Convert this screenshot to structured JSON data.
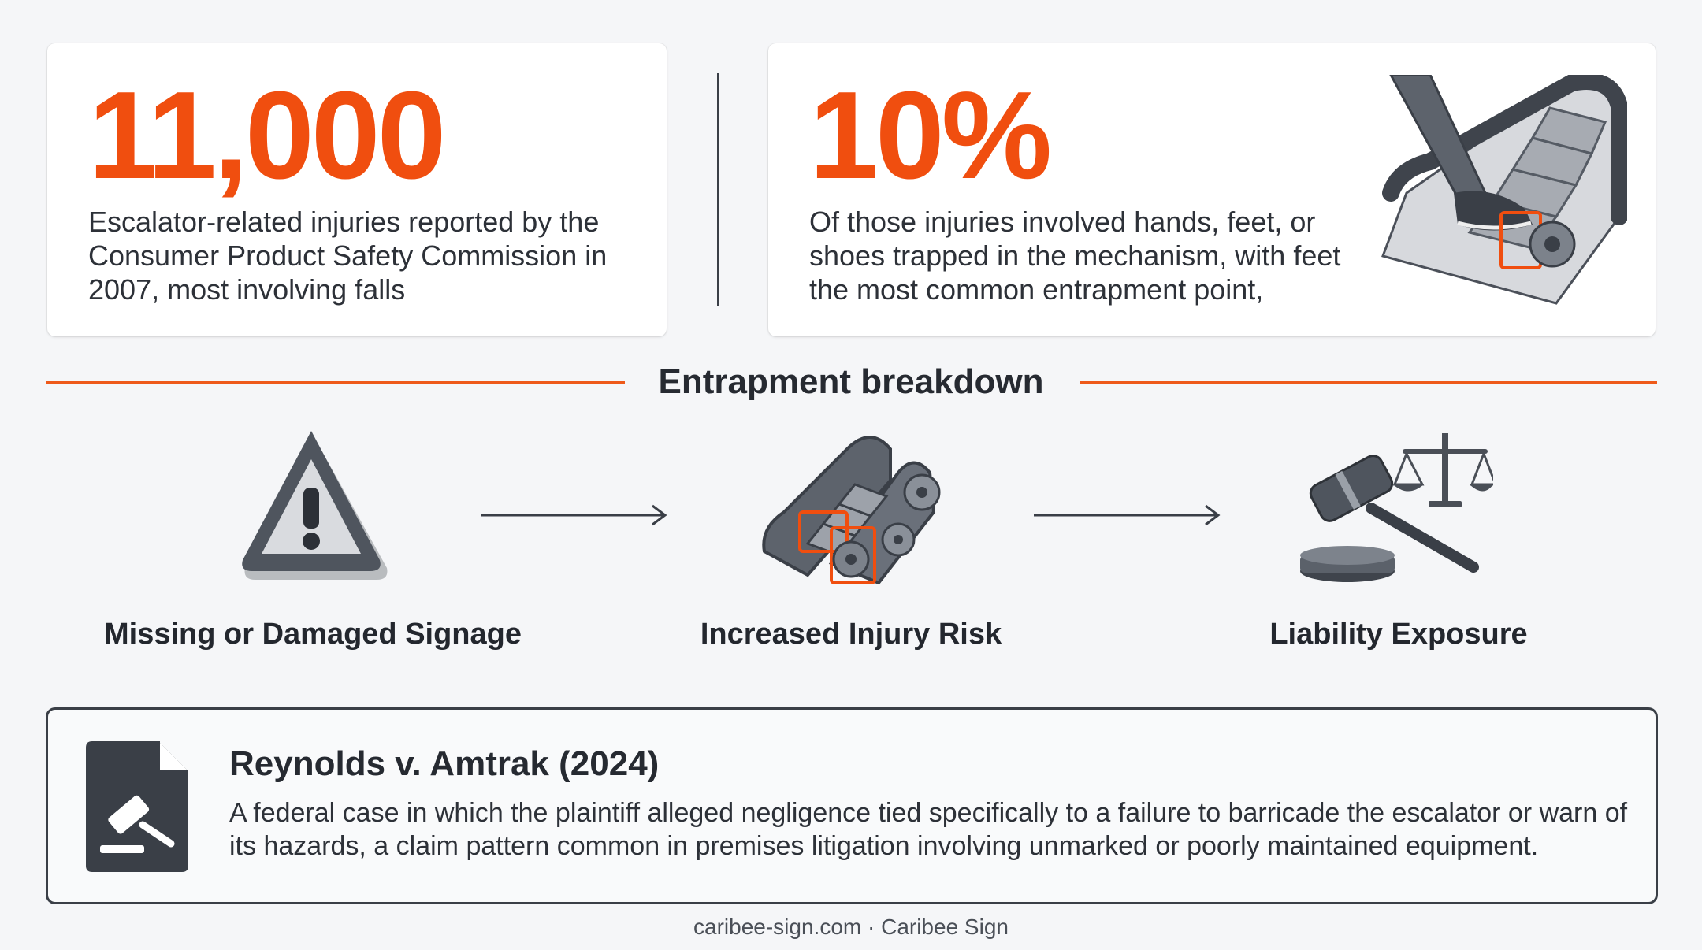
{
  "stats": [
    {
      "value": "11,000",
      "description": "Escalator-related injuries reported by the Consumer Product Safety Commission in 2007, most involving falls"
    },
    {
      "value": "10%",
      "description": "Of those injuries involved hands, feet, or shoes trapped in the mechanism, with feet the most common entrapment point,"
    }
  ],
  "section": {
    "title": "Entrapment breakdown"
  },
  "steps": [
    {
      "label": "Missing or Damaged Signage",
      "icon": "warning-triangle-icon"
    },
    {
      "label": "Increased Injury Risk",
      "icon": "escalator-gears-icon"
    },
    {
      "label": "Liability Exposure",
      "icon": "gavel-scales-icon"
    }
  ],
  "case": {
    "title": "Reynolds v. Amtrak (2024)",
    "body": "A federal case in which the plaintiff alleged negligence tied specifically to a failure to barricade the escalator or warn of its hazards, a claim pattern common in premises litigation involving unmarked or poorly maintained equipment.",
    "icon": "legal-document-icon"
  },
  "footer": {
    "text": "caribee-sign.com · Caribee Sign"
  },
  "colors": {
    "accent": "#f04e0f",
    "dark": "#3a3f47",
    "background": "#f5f6f8"
  }
}
